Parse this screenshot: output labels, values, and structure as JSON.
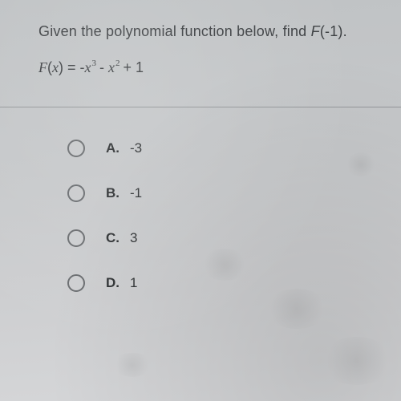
{
  "question": {
    "prompt_pre": "Given the polynomial function below, find ",
    "prompt_func": "F",
    "prompt_arg": "(-1).",
    "formula_lhs_F": "F",
    "formula_lhs_paren": "(",
    "formula_lhs_x": "x",
    "formula_lhs_close": ") = -",
    "formula_x1": "x",
    "formula_exp1": "3",
    "formula_mid": " - ",
    "formula_x2": "x",
    "formula_exp2": "2",
    "formula_tail": " + 1"
  },
  "choices": [
    {
      "letter": "A.",
      "text": "-3"
    },
    {
      "letter": "B.",
      "text": "-1"
    },
    {
      "letter": "C.",
      "text": "3"
    },
    {
      "letter": "D.",
      "text": "1"
    }
  ],
  "colors": {
    "text": "#3c3f42",
    "radio_border": "#6a6d70",
    "divider": "rgba(60,63,66,0.35)"
  }
}
